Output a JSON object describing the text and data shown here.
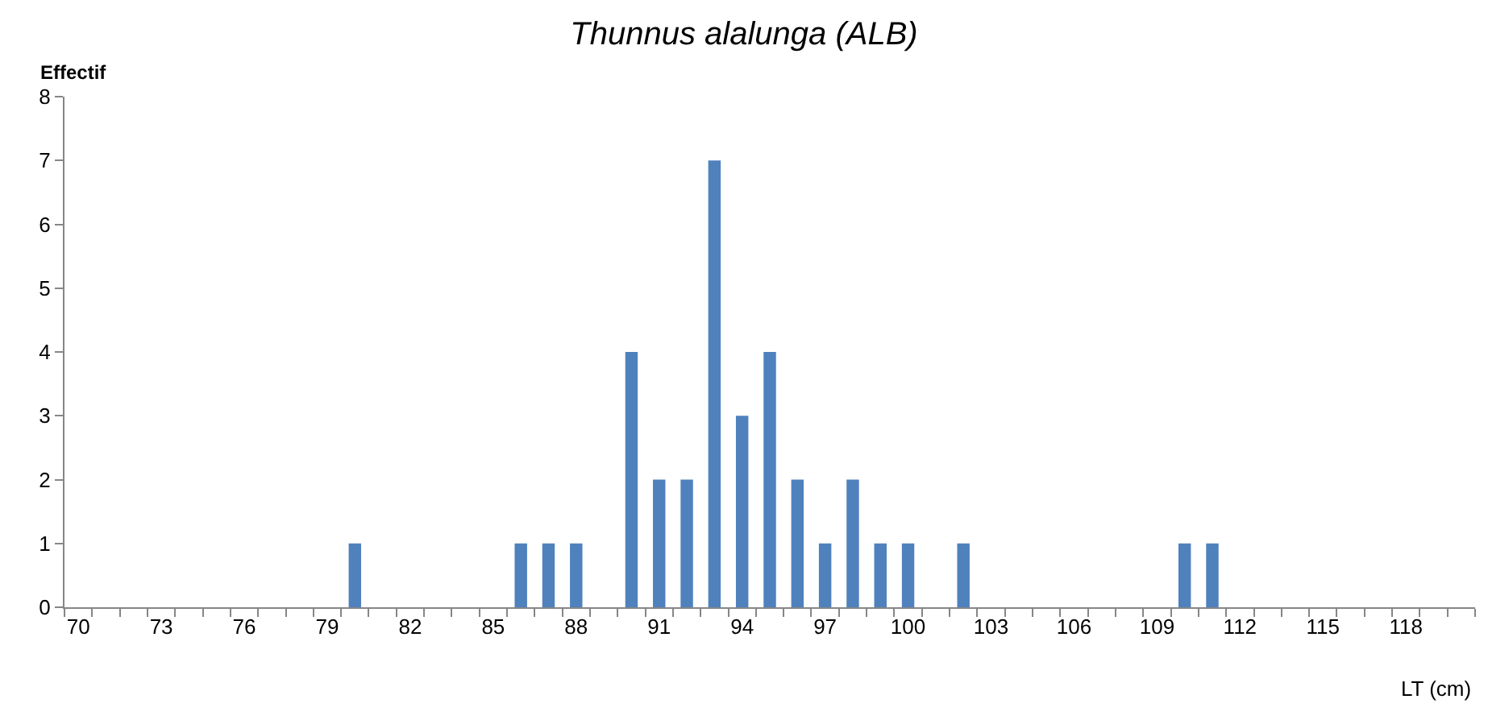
{
  "chart_data": {
    "type": "bar",
    "title": "Thunnus alalunga (ALB)",
    "xlabel": "LT (cm)",
    "ylabel": "Effectif",
    "categories": [
      "70",
      null,
      null,
      "73",
      null,
      null,
      "76",
      null,
      null,
      "79",
      null,
      null,
      "82",
      null,
      null,
      "85",
      null,
      null,
      "88",
      null,
      null,
      "91",
      null,
      null,
      "94",
      null,
      null,
      "97",
      null,
      null,
      "100",
      null,
      null,
      "103",
      null,
      null,
      "106",
      null,
      null,
      "109",
      null,
      null,
      "112",
      null,
      null,
      "115",
      null,
      null,
      "118",
      null,
      null
    ],
    "values": [
      0,
      0,
      0,
      0,
      0,
      0,
      0,
      0,
      0,
      0,
      1,
      0,
      0,
      0,
      0,
      0,
      1,
      1,
      1,
      0,
      4,
      2,
      2,
      7,
      3,
      4,
      2,
      1,
      2,
      1,
      1,
      0,
      1,
      0,
      0,
      0,
      0,
      0,
      0,
      0,
      1,
      1,
      0,
      0,
      0,
      0,
      0,
      0,
      0,
      0,
      0
    ],
    "color": "#4f81bd",
    "ylim": [
      0,
      8
    ],
    "yticks": [
      0,
      1,
      2,
      3,
      4,
      5,
      6,
      7,
      8
    ]
  }
}
